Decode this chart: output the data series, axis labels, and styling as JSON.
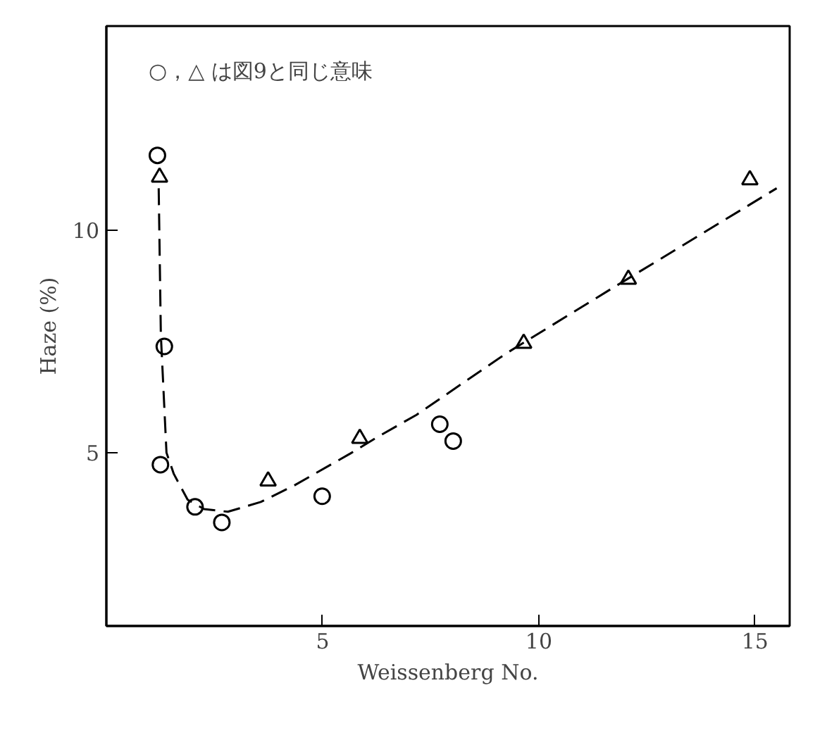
{
  "chart_data": {
    "type": "scatter",
    "xlabel": "Weissenberg No.",
    "ylabel": "Haze (%)",
    "xlim": [
      0,
      15.8
    ],
    "ylim": [
      1.1,
      14.6
    ],
    "xticks": [
      5,
      10,
      15
    ],
    "yticks": [
      5,
      10
    ],
    "grid": false,
    "annotations": [
      "○，△ は図9と同じ意味"
    ],
    "series": [
      {
        "marker": "circle",
        "color": "#000000",
        "x": [
          1.18,
          1.34,
          1.25,
          2.05,
          2.67,
          4.99,
          7.71,
          8.02
        ],
        "values": [
          11.69,
          7.39,
          4.73,
          3.78,
          3.43,
          4.02,
          5.64,
          5.26
        ]
      },
      {
        "marker": "triangle",
        "color": "#000000",
        "x": [
          1.23,
          3.74,
          5.86,
          9.65,
          12.07,
          14.88
        ],
        "values": [
          11.2,
          4.36,
          5.32,
          7.46,
          8.9,
          11.14
        ]
      },
      {
        "type": "line",
        "line_style": "dashed",
        "color": "#000000",
        "x": [
          1.21,
          1.26,
          1.39,
          1.56,
          1.88,
          2.26,
          2.81,
          3.57,
          4.34,
          5.64,
          6.3,
          7.17,
          9.24,
          11.63,
          15.5
        ],
        "values": [
          10.95,
          7.65,
          5.0,
          4.52,
          3.94,
          3.73,
          3.67,
          3.89,
          4.26,
          4.98,
          5.37,
          5.85,
          7.23,
          8.66,
          10.95
        ]
      }
    ]
  }
}
